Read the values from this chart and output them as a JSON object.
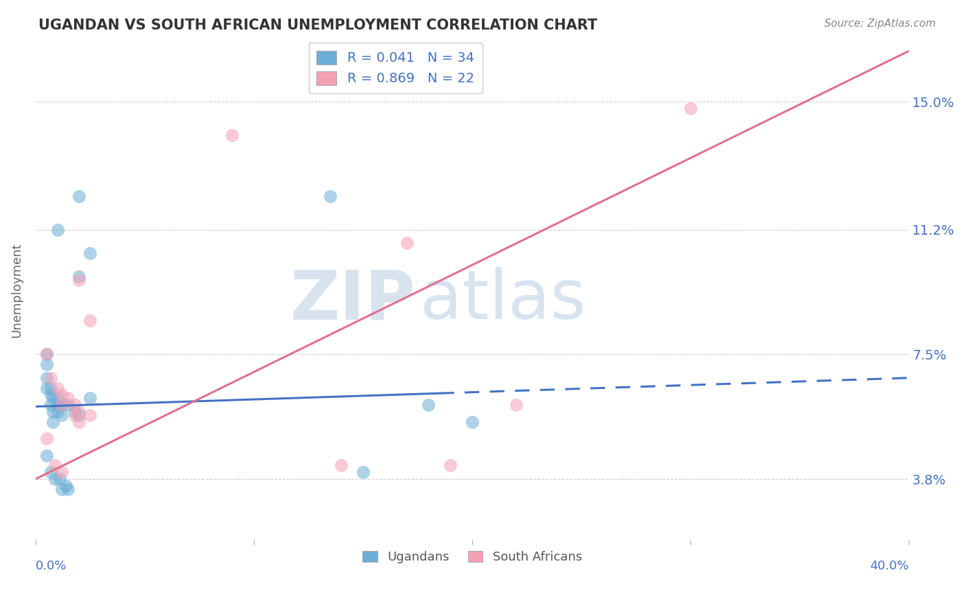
{
  "title": "UGANDAN VS SOUTH AFRICAN UNEMPLOYMENT CORRELATION CHART",
  "source": "Source: ZipAtlas.com",
  "ylabel": "Unemployment",
  "ytick_labels": [
    "3.8%",
    "7.5%",
    "11.2%",
    "15.0%"
  ],
  "ytick_values": [
    0.038,
    0.075,
    0.112,
    0.15
  ],
  "xlim": [
    0.0,
    0.4
  ],
  "ylim": [
    0.02,
    0.168
  ],
  "legend_line1_r": "R = 0.041",
  "legend_line1_n": "N = 34",
  "legend_line2_r": "R = 0.869",
  "legend_line2_n": "N = 22",
  "legend_color1": "#6baed6",
  "legend_color2": "#f4a0b5",
  "watermark_zip": "ZIP",
  "watermark_atlas": "atlas",
  "watermark_color_zip": "#c8d8e8",
  "watermark_color_atlas": "#b0c8e0",
  "ugandan_color": "#6baed6",
  "southafrican_color": "#f4a0b5",
  "ugandan_points": [
    [
      0.01,
      0.112
    ],
    [
      0.02,
      0.098
    ],
    [
      0.025,
      0.105
    ],
    [
      0.005,
      0.075
    ],
    [
      0.005,
      0.072
    ],
    [
      0.005,
      0.068
    ],
    [
      0.005,
      0.065
    ],
    [
      0.007,
      0.065
    ],
    [
      0.007,
      0.063
    ],
    [
      0.007,
      0.06
    ],
    [
      0.008,
      0.062
    ],
    [
      0.008,
      0.058
    ],
    [
      0.008,
      0.055
    ],
    [
      0.01,
      0.062
    ],
    [
      0.01,
      0.06
    ],
    [
      0.01,
      0.058
    ],
    [
      0.012,
      0.06
    ],
    [
      0.012,
      0.057
    ],
    [
      0.015,
      0.06
    ],
    [
      0.018,
      0.058
    ],
    [
      0.02,
      0.057
    ],
    [
      0.025,
      0.062
    ],
    [
      0.18,
      0.06
    ],
    [
      0.2,
      0.055
    ],
    [
      0.15,
      0.04
    ],
    [
      0.135,
      0.122
    ],
    [
      0.005,
      0.045
    ],
    [
      0.007,
      0.04
    ],
    [
      0.009,
      0.038
    ],
    [
      0.011,
      0.038
    ],
    [
      0.012,
      0.035
    ],
    [
      0.014,
      0.036
    ],
    [
      0.015,
      0.035
    ],
    [
      0.02,
      0.122
    ]
  ],
  "southafrican_points": [
    [
      0.02,
      0.097
    ],
    [
      0.025,
      0.085
    ],
    [
      0.005,
      0.075
    ],
    [
      0.007,
      0.068
    ],
    [
      0.01,
      0.065
    ],
    [
      0.012,
      0.063
    ],
    [
      0.012,
      0.06
    ],
    [
      0.015,
      0.062
    ],
    [
      0.018,
      0.06
    ],
    [
      0.018,
      0.057
    ],
    [
      0.02,
      0.058
    ],
    [
      0.02,
      0.055
    ],
    [
      0.025,
      0.057
    ],
    [
      0.17,
      0.108
    ],
    [
      0.22,
      0.06
    ],
    [
      0.14,
      0.042
    ],
    [
      0.19,
      0.042
    ],
    [
      0.09,
      0.14
    ],
    [
      0.3,
      0.148
    ],
    [
      0.005,
      0.05
    ],
    [
      0.009,
      0.042
    ],
    [
      0.012,
      0.04
    ]
  ],
  "blue_line_x0": 0.0,
  "blue_line_x_solid_end": 0.185,
  "blue_line_x1": 0.4,
  "blue_line_y0": 0.0595,
  "blue_line_y1": 0.068,
  "pink_line_x0": 0.0,
  "pink_line_x1": 0.4,
  "pink_line_y0": 0.038,
  "pink_line_y1": 0.165,
  "grid_color": "#cccccc",
  "background_color": "#ffffff"
}
